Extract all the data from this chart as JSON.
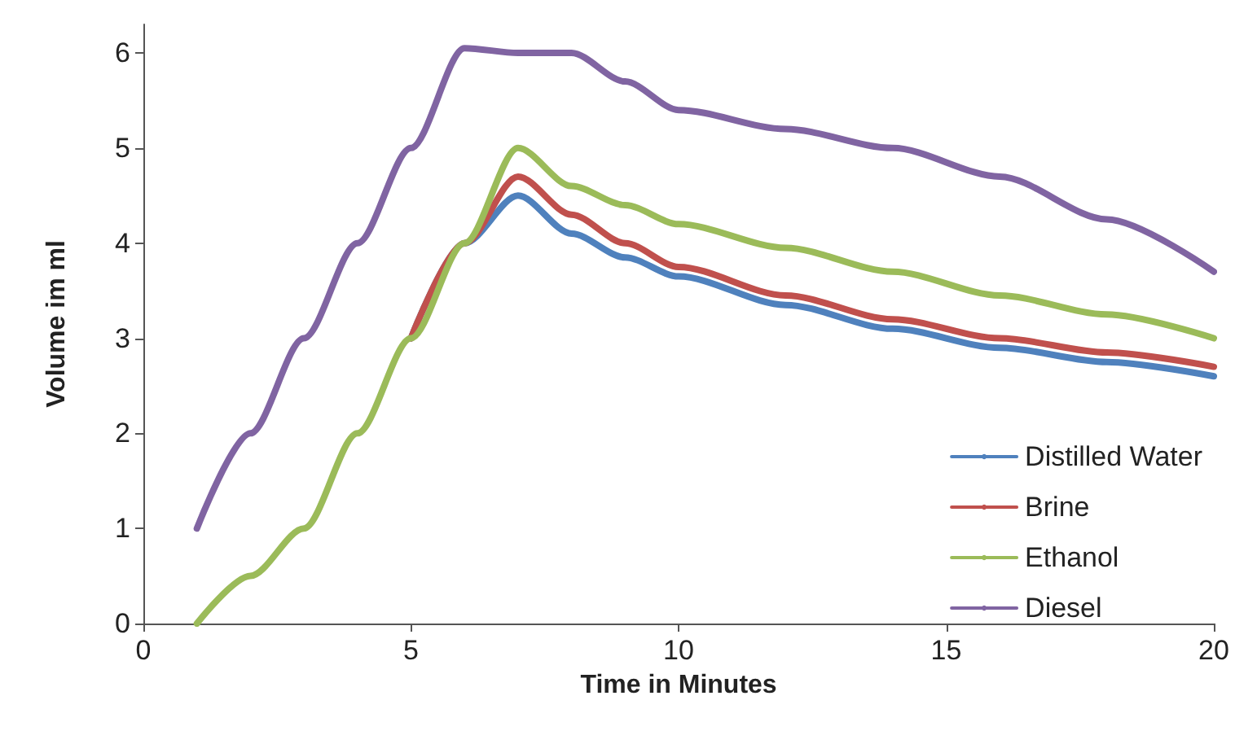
{
  "chart_data": {
    "type": "line",
    "xlabel": "Time in Minutes",
    "ylabel": "Volume im ml",
    "x": [
      1,
      2,
      3,
      4,
      5,
      6,
      7,
      8,
      9,
      10,
      12,
      14,
      16,
      18,
      20
    ],
    "series": [
      {
        "name": "Distilled Water",
        "color": "#4f81bd",
        "values": [
          null,
          null,
          null,
          null,
          3,
          4,
          4.5,
          4.1,
          3.85,
          3.65,
          3.35,
          3.1,
          2.9,
          2.75,
          2.6
        ]
      },
      {
        "name": "Brine",
        "color": "#c0504d",
        "values": [
          null,
          null,
          null,
          null,
          3,
          4,
          4.7,
          4.3,
          4.0,
          3.75,
          3.45,
          3.2,
          3.0,
          2.85,
          2.7
        ]
      },
      {
        "name": "Ethanol",
        "color": "#9bbb59",
        "values": [
          0,
          0.5,
          1,
          2,
          3,
          4,
          5,
          4.6,
          4.4,
          4.2,
          3.95,
          3.7,
          3.45,
          3.25,
          3.0
        ]
      },
      {
        "name": "Diesel",
        "color": "#8064a2",
        "values": [
          1,
          2,
          3,
          4,
          5,
          6.05,
          6.0,
          6.0,
          5.7,
          5.4,
          5.2,
          5.0,
          4.7,
          4.25,
          3.7
        ]
      }
    ],
    "xlim": [
      0,
      20
    ],
    "xticks": [
      0,
      5,
      10,
      15,
      20
    ],
    "ylim": [
      0,
      6.3
    ],
    "yticks": [
      0,
      1,
      2,
      3,
      4,
      5,
      6
    ],
    "grid": false,
    "legend": "bottom right",
    "marker": "none",
    "line_style": "solid"
  }
}
